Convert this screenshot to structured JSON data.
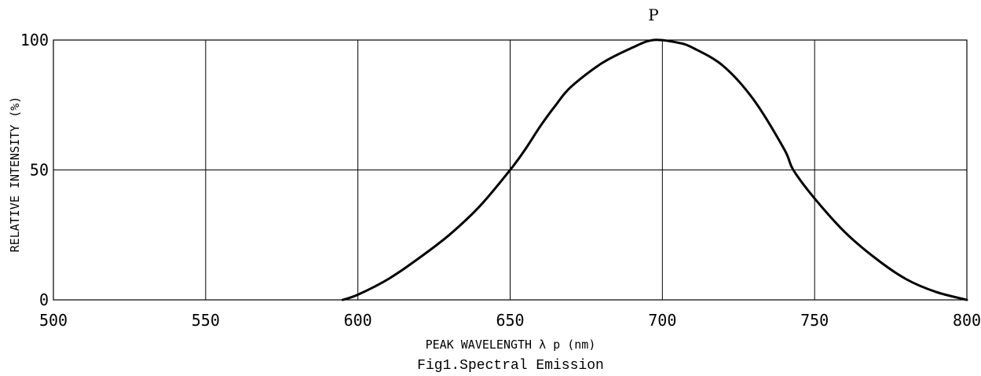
{
  "chart_data": {
    "type": "line",
    "peak_label": "P",
    "xlabel": "PEAK WAVELENGTH λ p (nm)",
    "ylabel": "RELATIVE INTENSITY (%)",
    "caption": "Fig1.Spectral Emission",
    "xlim": [
      500,
      800
    ],
    "ylim": [
      0,
      100
    ],
    "x_ticks": [
      500,
      550,
      600,
      650,
      700,
      750,
      800
    ],
    "y_ticks": [
      0,
      50,
      100
    ],
    "grid": true,
    "series": [
      {
        "points": [
          [
            595,
            0
          ],
          [
            600,
            2
          ],
          [
            610,
            8
          ],
          [
            620,
            16
          ],
          [
            630,
            25
          ],
          [
            640,
            36
          ],
          [
            650,
            50
          ],
          [
            655,
            58
          ],
          [
            660,
            67
          ],
          [
            665,
            75
          ],
          [
            670,
            82
          ],
          [
            680,
            91
          ],
          [
            690,
            97
          ],
          [
            697,
            100
          ],
          [
            705,
            99
          ],
          [
            710,
            97
          ],
          [
            720,
            90
          ],
          [
            730,
            77
          ],
          [
            740,
            58
          ],
          [
            743,
            50
          ],
          [
            750,
            39
          ],
          [
            760,
            26
          ],
          [
            770,
            16
          ],
          [
            780,
            8
          ],
          [
            790,
            3
          ],
          [
            800,
            0
          ]
        ]
      }
    ]
  }
}
